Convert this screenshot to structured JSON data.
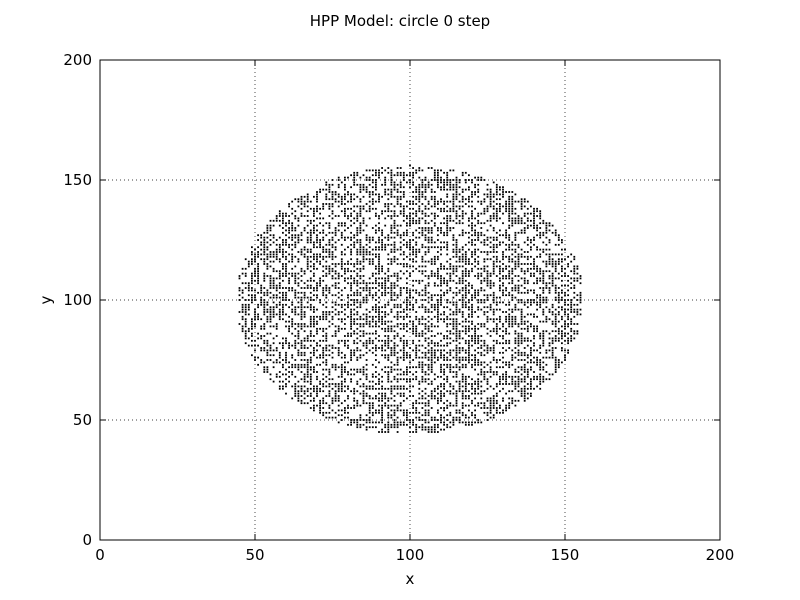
{
  "chart_data": {
    "type": "scatter",
    "title": "HPP Model: circle 0 step",
    "xlabel": "x",
    "ylabel": "y",
    "xlim": [
      0,
      200
    ],
    "ylim": [
      0,
      200
    ],
    "xticks": [
      "0",
      "50",
      "100",
      "150",
      "200"
    ],
    "yticks": [
      "0",
      "50",
      "100",
      "150",
      "200"
    ],
    "grid": true,
    "grid_style": "dotted",
    "marker_color": "#000000",
    "region": {
      "shape": "ellipse",
      "center": [
        100,
        100
      ],
      "radius_x": 56,
      "radius_y": 56,
      "fill_fraction": 0.5
    }
  }
}
